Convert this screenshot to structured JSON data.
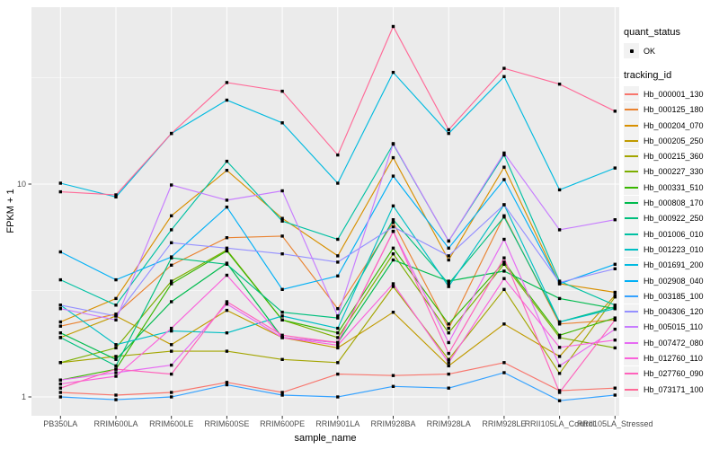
{
  "legend": {
    "quant_status_title": "quant_status",
    "quant_status_value": "OK",
    "tracking_id_title": "tracking_id"
  },
  "chart_data": {
    "type": "line",
    "title": "",
    "xlabel": "sample_name",
    "ylabel": "FPKM + 1",
    "y_scale": "log10",
    "ylim": [
      0.82,
      68
    ],
    "y_tick_values": [
      1,
      10
    ],
    "y_tick_labels": [
      "1",
      "10"
    ],
    "y_minor_gridlines": [
      3.1623,
      31.623
    ],
    "grid": "on",
    "legend_position": "right",
    "panel_background": "#EBEBEB",
    "gridline_color": "#FFFFFF",
    "point_color": "#000000",
    "axis_text_color": "#4D4D4D",
    "point_shape_label": "OK",
    "categories": [
      "PB350LA",
      "RRIM600LA",
      "RRIM600LE",
      "RRIM600SE",
      "RRIM600PE",
      "RRIM901LA",
      "RRIM928BA",
      "RRIM928LA",
      "RRIM928LE",
      "RRII105LA_Control",
      "RRII105LA_Stressed"
    ],
    "series": [
      {
        "name": "Hb_000001_130",
        "color": "#F8766D",
        "values": [
          1.05,
          1.02,
          1.05,
          1.17,
          1.05,
          1.28,
          1.26,
          1.28,
          1.45,
          1.07,
          1.1
        ]
      },
      {
        "name": "Hb_000125_180",
        "color": "#EA8331",
        "values": [
          2.15,
          2.45,
          4.16,
          5.6,
          5.7,
          2.6,
          6.6,
          2.1,
          7.1,
          2.2,
          2.3
        ]
      },
      {
        "name": "Hb_000204_070",
        "color": "#D89000",
        "values": [
          2.25,
          2.9,
          7.1,
          11.6,
          6.9,
          4.6,
          13.3,
          4.4,
          12.0,
          3.4,
          3.1
        ]
      },
      {
        "name": "Hb_000205_250",
        "color": "#C09B00",
        "values": [
          1.9,
          2.4,
          1.76,
          2.55,
          1.9,
          1.7,
          2.5,
          1.4,
          2.2,
          1.55,
          3.0
        ]
      },
      {
        "name": "Hb_000215_360",
        "color": "#A3A500",
        "values": [
          1.45,
          1.55,
          1.64,
          1.64,
          1.5,
          1.45,
          3.3,
          1.5,
          3.2,
          1.29,
          2.95
        ]
      },
      {
        "name": "Hb_000227_330",
        "color": "#7CAE00",
        "values": [
          1.45,
          1.7,
          3.5,
          4.9,
          2.3,
          1.9,
          4.7,
          2.0,
          4.2,
          1.9,
          1.7
        ]
      },
      {
        "name": "Hb_000331_510",
        "color": "#39B600",
        "values": [
          1.2,
          1.35,
          3.4,
          4.85,
          2.3,
          2.0,
          5.0,
          2.2,
          4.3,
          1.95,
          2.35
        ]
      },
      {
        "name": "Hb_000808_170",
        "color": "#00BB4E",
        "values": [
          2.0,
          1.5,
          2.8,
          4.25,
          1.9,
          1.8,
          4.4,
          3.5,
          3.9,
          2.9,
          2.6
        ]
      },
      {
        "name": "Hb_000922_250",
        "color": "#00BF7D",
        "values": [
          1.9,
          1.4,
          4.5,
          4.2,
          2.5,
          2.35,
          6.8,
          3.4,
          7.0,
          2.25,
          2.65
        ]
      },
      {
        "name": "Hb_001006_010",
        "color": "#00C1A3",
        "values": [
          3.55,
          2.7,
          6.1,
          12.8,
          6.7,
          5.5,
          15.4,
          5.4,
          13.7,
          3.5,
          2.7
        ]
      },
      {
        "name": "Hb_001223_010",
        "color": "#00BFC4",
        "values": [
          2.7,
          1.76,
          2.04,
          2.0,
          2.4,
          2.1,
          7.9,
          3.3,
          8.0,
          2.25,
          2.6
        ]
      },
      {
        "name": "Hb_001691_200",
        "color": "#00BAE0",
        "values": [
          10.1,
          8.7,
          17.3,
          24.8,
          19.4,
          10.1,
          33.5,
          17.3,
          32.0,
          9.4,
          11.9
        ]
      },
      {
        "name": "Hb_002908_040",
        "color": "#00B0F6",
        "values": [
          4.8,
          3.55,
          4.55,
          7.8,
          3.2,
          3.7,
          10.9,
          5.0,
          10.5,
          3.4,
          4.2
        ]
      },
      {
        "name": "Hb_003185_100",
        "color": "#35A2FF",
        "values": [
          1.0,
          0.97,
          1.0,
          1.14,
          1.02,
          1.0,
          1.12,
          1.1,
          1.3,
          0.96,
          1.02
        ]
      },
      {
        "name": "Hb_004306_120",
        "color": "#9590FF",
        "values": [
          2.7,
          2.4,
          5.3,
          5.0,
          4.7,
          4.3,
          6.3,
          4.6,
          8.0,
          3.45,
          4.0
        ]
      },
      {
        "name": "Hb_005015_110",
        "color": "#C77CFF",
        "values": [
          2.6,
          2.3,
          9.9,
          8.4,
          9.3,
          2.4,
          15.5,
          5.4,
          14.0,
          6.1,
          6.8
        ]
      },
      {
        "name": "Hb_007472_080",
        "color": "#E76BF3",
        "values": [
          1.2,
          1.3,
          1.41,
          2.73,
          1.9,
          1.8,
          6.0,
          1.8,
          5.5,
          1.4,
          2.08
        ]
      },
      {
        "name": "Hb_012760_110",
        "color": "#FA62DB",
        "values": [
          1.15,
          1.25,
          2.1,
          3.73,
          1.9,
          1.75,
          3.4,
          1.45,
          3.6,
          1.71,
          1.85
        ]
      },
      {
        "name": "Hb_027760_090",
        "color": "#FF62BC",
        "values": [
          1.1,
          1.35,
          1.28,
          2.8,
          1.95,
          1.8,
          6.0,
          1.6,
          4.5,
          1.05,
          2.3
        ]
      },
      {
        "name": "Hb_073171_100",
        "color": "#FF6A98",
        "values": [
          9.2,
          8.9,
          17.3,
          30.0,
          27.3,
          13.7,
          55.0,
          18.0,
          35.0,
          29.5,
          22.0
        ]
      }
    ]
  }
}
